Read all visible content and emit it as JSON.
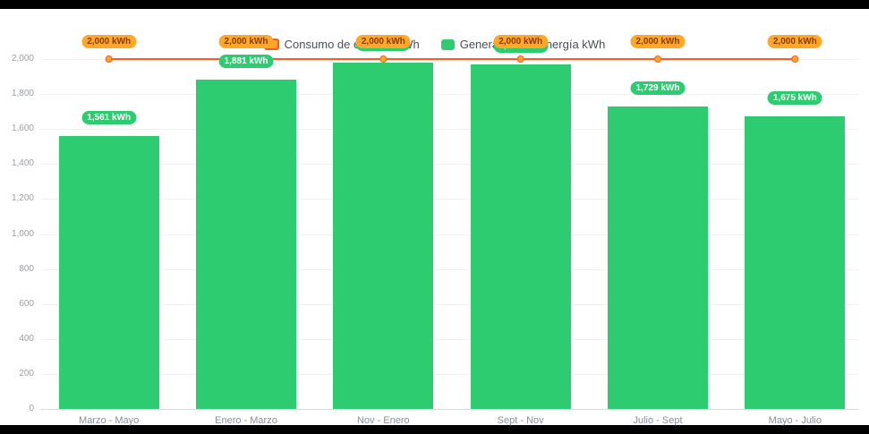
{
  "chart_data": {
    "type": "bar",
    "title": "",
    "xlabel": "",
    "ylabel": "",
    "unit": "kWh",
    "categories": [
      "Marzo - Mayo",
      "Enero - Marzo",
      "Nov - Enero",
      "Sept - Nov",
      "Julio - Sept",
      "Mayo - Julio"
    ],
    "series": [
      {
        "name": "Consumo de energía kWh",
        "type": "line",
        "values": [
          2000,
          2000,
          2000,
          2000,
          2000,
          2000
        ],
        "color": "#ff5a1f",
        "marker_color": "#ffa726",
        "label_bg": "#ffa726",
        "label_text_color": "#8a3c00"
      },
      {
        "name": "Generación de energía kWh",
        "type": "bar",
        "values": [
          1561,
          1881,
          1981,
          1967,
          1729,
          1675
        ],
        "color": "#2ecc71",
        "label_bg": "#2ecc71",
        "label_text_color": "#ffffff"
      }
    ],
    "ylim": [
      0,
      2000
    ],
    "ytick_step": 200,
    "grid": true,
    "legend_position": "top-center",
    "background_color": "#ffffff",
    "page_color": "#000000"
  }
}
